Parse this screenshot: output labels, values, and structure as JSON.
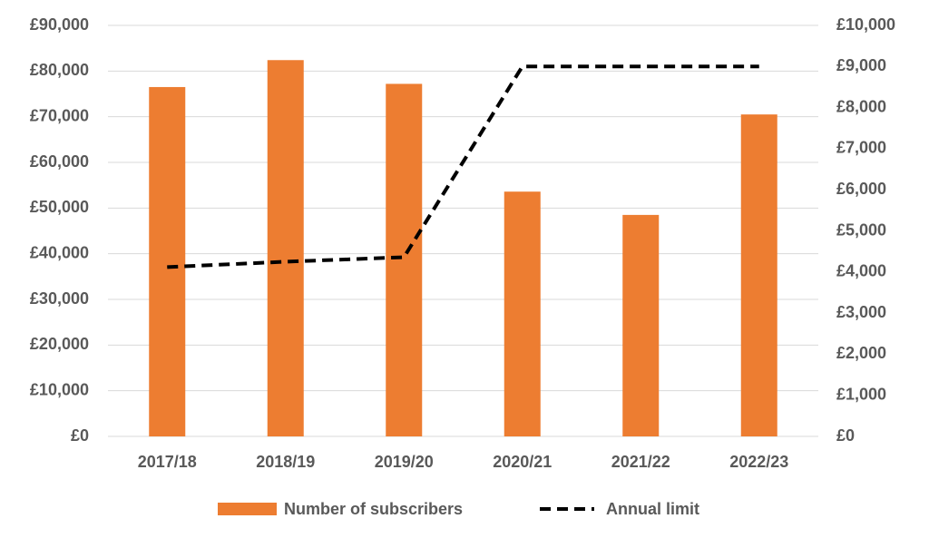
{
  "chart_data": {
    "type": "bar-line",
    "categories": [
      "2017/18",
      "2018/19",
      "2019/20",
      "2020/21",
      "2021/22",
      "2022/23"
    ],
    "series": [
      {
        "name": "Number of subscribers",
        "type": "bar",
        "color": "#ed7d31",
        "values": [
          76500,
          82400,
          77200,
          53600,
          48500,
          70500
        ]
      },
      {
        "name": "Annual limit",
        "type": "line",
        "axis": "y2",
        "color": "#000000",
        "dashed": true,
        "values": [
          4120,
          4250,
          4360,
          9000,
          9000,
          9000
        ]
      }
    ],
    "ylim": [
      0,
      90000
    ],
    "yticks": [
      {
        "value": 0,
        "label": "£0"
      },
      {
        "value": 10000,
        "label": "£10,000"
      },
      {
        "value": 20000,
        "label": "£20,000"
      },
      {
        "value": 30000,
        "label": "£30,000"
      },
      {
        "value": 40000,
        "label": "£40,000"
      },
      {
        "value": 50000,
        "label": "£50,000"
      },
      {
        "value": 60000,
        "label": "£60,000"
      },
      {
        "value": 70000,
        "label": "£70,000"
      },
      {
        "value": 80000,
        "label": "£80,000"
      },
      {
        "value": 90000,
        "label": "£90,000"
      }
    ],
    "y2lim": [
      0,
      10000
    ],
    "y2ticks": [
      {
        "value": 0,
        "label": "£0"
      },
      {
        "value": 1000,
        "label": "£1,000"
      },
      {
        "value": 2000,
        "label": "£2,000"
      },
      {
        "value": 3000,
        "label": "£3,000"
      },
      {
        "value": 4000,
        "label": "£4,000"
      },
      {
        "value": 5000,
        "label": "£5,000"
      },
      {
        "value": 6000,
        "label": "£6,000"
      },
      {
        "value": 7000,
        "label": "£7,000"
      },
      {
        "value": 8000,
        "label": "£8,000"
      },
      {
        "value": 9000,
        "label": "£9,000"
      },
      {
        "value": 10000,
        "label": "£10,000"
      }
    ],
    "grid": true,
    "legend": "bottom"
  }
}
